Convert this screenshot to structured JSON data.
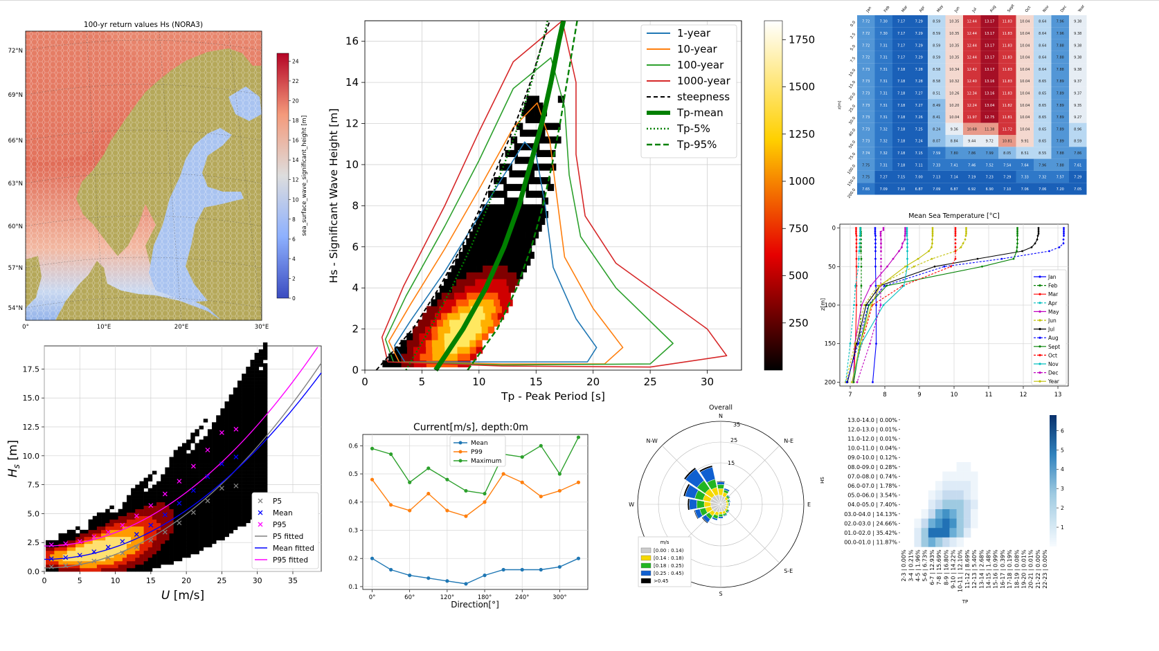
{
  "panels": {
    "map": {
      "title": "100-yr return values Hs (NORA3)",
      "lat_labels": [
        "72°N",
        "69°N",
        "66°N",
        "63°N",
        "60°N",
        "57°N",
        "54°N"
      ],
      "lon_labels": [
        "0°",
        "10°E",
        "20°E",
        "30°E"
      ],
      "colorbar_label": "sea_surface_wave_significant_height [m]",
      "colorbar_ticks": [
        "0",
        "2",
        "4",
        "6",
        "8",
        "10",
        "12",
        "14",
        "16",
        "18",
        "20",
        "22",
        "24"
      ]
    },
    "hs_tp": {
      "xlabel": "Tp - Peak Period [s]",
      "ylabel": "Hs - Significant Wave Height [m]",
      "xticks": [
        "0",
        "5",
        "10",
        "15",
        "20",
        "25",
        "30"
      ],
      "yticks": [
        "0",
        "2",
        "4",
        "6",
        "8",
        "10",
        "12",
        "14",
        "16"
      ],
      "colorbar_ticks": [
        "250",
        "500",
        "750",
        "1000",
        "1250",
        "1500",
        "1750"
      ],
      "legend": [
        "1-year",
        "10-year",
        "100-year",
        "1000-year",
        "steepness",
        "Tp-mean",
        "Tp-5%",
        "Tp-95%"
      ]
    },
    "hs_u": {
      "xlabel": "U [m/s]",
      "ylabel": "Hs [m]",
      "xticks": [
        "0",
        "5",
        "10",
        "15",
        "20",
        "25",
        "30",
        "35"
      ],
      "yticks": [
        "0.0",
        "2.5",
        "5.0",
        "7.5",
        "10.0",
        "12.5",
        "15.0",
        "17.5"
      ],
      "legend": [
        "P5",
        "Mean",
        "P95",
        "P5 fitted",
        "Mean fitted",
        "P95 fitted"
      ]
    },
    "current": {
      "title": "Current[m/s], depth:0m",
      "xlabel": "Direction[°]",
      "xticks": [
        "0°",
        "60°",
        "120°",
        "180°",
        "240°",
        "300°"
      ],
      "yticks": [
        "0.1",
        "0.2",
        "0.3",
        "0.4",
        "0.5",
        "0.6"
      ],
      "legend": [
        "Mean",
        "P99",
        "Maximum"
      ]
    },
    "rose": {
      "title": "Overall",
      "directions": [
        "N",
        "N-E",
        "E",
        "S-E",
        "S",
        "W",
        "N-W"
      ],
      "rings": [
        "15",
        "25",
        "35"
      ],
      "legend_title": "m/s",
      "legend": [
        "[0.00 : 0.14)",
        "[0.14 : 0.18)",
        "[0.18 : 0.25)",
        "[0.25 : 0.45)",
        ">0.45"
      ]
    },
    "table": {
      "months": [
        "Jan",
        "Feb",
        "Mar",
        "Apr",
        "May",
        "Jun",
        "Jul",
        "Aug",
        "Sept",
        "Oct",
        "Nov",
        "Dec",
        "Year"
      ],
      "depths": [
        "0.0",
        "2.5",
        "5.0",
        "7.5",
        "10.0",
        "15.0",
        "20.0",
        "25.0",
        "30.0",
        "40.0",
        "50.0",
        "75.0",
        "100.0",
        "150.0",
        "200.0"
      ],
      "axis_label": "z[m]",
      "rows": [
        [
          "7.72",
          "7.30",
          "7.17",
          "7.29",
          "8.59",
          "10.35",
          "12.44",
          "13.17",
          "11.83",
          "10.04",
          "8.64",
          "7.96",
          "9.38"
        ],
        [
          "7.72",
          "7.30",
          "7.17",
          "7.29",
          "8.59",
          "10.35",
          "12.44",
          "13.17",
          "11.83",
          "10.04",
          "8.64",
          "7.96",
          "9.38"
        ],
        [
          "7.72",
          "7.31",
          "7.17",
          "7.29",
          "8.59",
          "10.35",
          "12.44",
          "13.17",
          "11.83",
          "10.04",
          "8.64",
          "7.88",
          "9.38"
        ],
        [
          "7.72",
          "7.31",
          "7.17",
          "7.29",
          "8.59",
          "10.35",
          "12.44",
          "13.17",
          "11.83",
          "10.04",
          "8.64",
          "7.88",
          "9.38"
        ],
        [
          "7.73",
          "7.31",
          "7.18",
          "7.28",
          "8.58",
          "10.34",
          "12.42",
          "13.17",
          "11.83",
          "10.04",
          "8.64",
          "7.88",
          "9.38"
        ],
        [
          "7.73",
          "7.31",
          "7.18",
          "7.28",
          "8.58",
          "10.32",
          "12.40",
          "13.16",
          "11.83",
          "10.04",
          "8.65",
          "7.89",
          "9.37"
        ],
        [
          "7.73",
          "7.31",
          "7.18",
          "7.27",
          "8.51",
          "10.26",
          "12.34",
          "13.16",
          "11.83",
          "10.04",
          "8.65",
          "7.89",
          "9.37"
        ],
        [
          "7.73",
          "7.31",
          "7.18",
          "7.27",
          "8.49",
          "10.20",
          "12.24",
          "13.04",
          "11.82",
          "10.04",
          "8.65",
          "7.89",
          "9.35"
        ],
        [
          "7.73",
          "7.31",
          "7.18",
          "7.26",
          "8.41",
          "10.04",
          "11.97",
          "12.75",
          "11.81",
          "10.04",
          "8.65",
          "7.89",
          "9.27"
        ],
        [
          "7.73",
          "7.32",
          "7.18",
          "7.25",
          "8.24",
          "9.36",
          "10.68",
          "11.38",
          "11.72",
          "10.04",
          "8.65",
          "7.89",
          "8.96"
        ],
        [
          "7.73",
          "7.32",
          "7.18",
          "7.24",
          "8.07",
          "8.84",
          "9.44",
          "9.72",
          "10.81",
          "9.91",
          "8.65",
          "7.89",
          "8.59"
        ],
        [
          "7.74",
          "7.32",
          "7.18",
          "7.15",
          "7.59",
          "7.80",
          "7.86",
          "7.99",
          "8.05",
          "8.51",
          "8.55",
          "7.88",
          "7.86"
        ],
        [
          "7.75",
          "7.31",
          "7.18",
          "7.11",
          "7.33",
          "7.41",
          "7.46",
          "7.52",
          "7.54",
          "7.64",
          "7.96",
          "7.88",
          "7.61"
        ],
        [
          "7.75",
          "7.27",
          "7.15",
          "7.00",
          "7.13",
          "7.14",
          "7.19",
          "7.23",
          "7.29",
          "7.33",
          "7.32",
          "7.57",
          "7.29"
        ],
        [
          "7.65",
          "7.09",
          "7.10",
          "6.87",
          "7.09",
          "6.87",
          "6.92",
          "6.90",
          "7.10",
          "7.06",
          "7.06",
          "7.20",
          "7.05"
        ]
      ]
    },
    "profile": {
      "title": "Mean Sea Temperature [°C]",
      "ylabel": "z[m]",
      "xticks": [
        "7",
        "8",
        "9",
        "10",
        "11",
        "12",
        "13"
      ],
      "yticks": [
        "0",
        "50",
        "100",
        "150",
        "200"
      ]
    },
    "joint": {
      "hs_labels": [
        "13.0-14.0 | 0.00%",
        "12.0-13.0 | 0.01%",
        "11.0-12.0 | 0.01%",
        "10.0-11.0 | 0.04%",
        "09.0-10.0 | 0.12%",
        "08.0-09.0 | 0.28%",
        "07.0-08.0 | 0.74%",
        "06.0-07.0 | 1.78%",
        "05.0-06.0 | 3.54%",
        "04.0-05.0 | 7.40%",
        "03.0-04.0 | 14.13%",
        "02.0-03.0 | 24.66%",
        "01.0-02.0 | 35.42%",
        "00.0-01.0 | 11.87%"
      ],
      "tp_labels": [
        "2-3 | 0.00%",
        "3-4 | 0.21%",
        "4-5 | 1.96%",
        "5-6 | 6.73%",
        "6-7 | 12.93%",
        "7-8 | 15.69%",
        "8-9 | 16.80%",
        "9-10 | 14.22%",
        "10-11 | 12.10%",
        "11-12 | 8.69%",
        "12-13 | 5.40%",
        "13-14 | 2.68%",
        "14-15 | 1.48%",
        "15-16 | 0.99%",
        "16-17 | 0.39%",
        "17-18 | 0.19%",
        "18-19 | 0.08%",
        "19-20 | 0.01%",
        "20-21 | 0.01%",
        "21-22 | 0.00%",
        "22-23 | 0.00%"
      ],
      "xlabel": "TP",
      "ylabel": "HS",
      "colorbar_ticks": [
        "1",
        "2",
        "3",
        "4",
        "5",
        "6"
      ]
    }
  },
  "chart_data": [
    {
      "type": "line",
      "title": "Current[m/s], depth:0m",
      "xlabel": "Direction[°]",
      "x": [
        0,
        30,
        60,
        90,
        120,
        150,
        180,
        210,
        240,
        270,
        300,
        330
      ],
      "xlim": [
        -15,
        345
      ],
      "ylim": [
        0.09,
        0.64
      ],
      "series": [
        {
          "name": "Mean",
          "color": "#1f77b4",
          "values": [
            0.2,
            0.16,
            0.14,
            0.13,
            0.12,
            0.11,
            0.14,
            0.16,
            0.16,
            0.16,
            0.17,
            0.2
          ]
        },
        {
          "name": "P99",
          "color": "#ff7f0e",
          "values": [
            0.48,
            0.39,
            0.37,
            0.43,
            0.37,
            0.35,
            0.4,
            0.5,
            0.47,
            0.42,
            0.44,
            0.47
          ]
        },
        {
          "name": "Maximum",
          "color": "#2ca02c",
          "values": [
            0.59,
            0.57,
            0.47,
            0.52,
            0.48,
            0.44,
            0.43,
            0.57,
            0.56,
            0.6,
            0.5,
            0.63
          ]
        }
      ]
    },
    {
      "type": "line",
      "title": "Mean Sea Temperature [°C]",
      "ylabel": "z[m]",
      "x_is": "temperature",
      "depths": [
        0,
        2.5,
        5,
        7.5,
        10,
        15,
        20,
        25,
        30,
        40,
        50,
        75,
        100,
        150,
        200
      ],
      "xlim": [
        6.7,
        13.3
      ],
      "ylim": [
        205,
        -5
      ],
      "series": [
        {
          "name": "Jan",
          "color": "#0000ff",
          "dash": false,
          "values": [
            7.72,
            7.72,
            7.72,
            7.72,
            7.73,
            7.73,
            7.73,
            7.73,
            7.73,
            7.73,
            7.73,
            7.74,
            7.75,
            7.75,
            7.65
          ]
        },
        {
          "name": "Feb",
          "color": "#008000",
          "dash": true,
          "values": [
            7.3,
            7.3,
            7.31,
            7.31,
            7.31,
            7.31,
            7.31,
            7.31,
            7.31,
            7.32,
            7.32,
            7.32,
            7.31,
            7.27,
            7.09
          ]
        },
        {
          "name": "Mar",
          "color": "#ff0000",
          "dash": false,
          "values": [
            7.17,
            7.17,
            7.17,
            7.17,
            7.18,
            7.18,
            7.18,
            7.18,
            7.18,
            7.18,
            7.18,
            7.18,
            7.18,
            7.15,
            7.1
          ]
        },
        {
          "name": "Apr",
          "color": "#00bfbf",
          "dash": true,
          "values": [
            7.29,
            7.29,
            7.29,
            7.29,
            7.28,
            7.28,
            7.27,
            7.27,
            7.26,
            7.25,
            7.24,
            7.15,
            7.11,
            7.0,
            6.87
          ]
        },
        {
          "name": "May",
          "color": "#bf00bf",
          "dash": false,
          "values": [
            8.59,
            8.59,
            8.59,
            8.59,
            8.58,
            8.58,
            8.51,
            8.49,
            8.41,
            8.24,
            8.07,
            7.59,
            7.33,
            7.13,
            7.09
          ]
        },
        {
          "name": "Jun",
          "color": "#bfbf00",
          "dash": true,
          "values": [
            10.35,
            10.35,
            10.35,
            10.35,
            10.34,
            10.32,
            10.26,
            10.2,
            10.04,
            9.36,
            8.84,
            7.8,
            7.41,
            7.14,
            6.87
          ]
        },
        {
          "name": "Jul",
          "color": "#000000",
          "dash": false,
          "values": [
            12.44,
            12.44,
            12.44,
            12.44,
            12.42,
            12.4,
            12.34,
            12.24,
            11.97,
            10.68,
            9.44,
            7.86,
            7.46,
            7.19,
            6.92
          ]
        },
        {
          "name": "Aug",
          "color": "#0000ff",
          "dash": true,
          "values": [
            13.17,
            13.17,
            13.17,
            13.17,
            13.17,
            13.16,
            13.16,
            13.04,
            12.75,
            11.38,
            9.72,
            7.99,
            7.52,
            7.23,
            6.9
          ]
        },
        {
          "name": "Sept",
          "color": "#008000",
          "dash": false,
          "values": [
            11.83,
            11.83,
            11.83,
            11.83,
            11.83,
            11.83,
            11.83,
            11.82,
            11.81,
            11.72,
            10.81,
            8.05,
            7.54,
            7.29,
            7.1
          ]
        },
        {
          "name": "Oct",
          "color": "#ff0000",
          "dash": true,
          "values": [
            10.04,
            10.04,
            10.04,
            10.04,
            10.04,
            10.04,
            10.04,
            10.04,
            10.04,
            10.04,
            9.91,
            8.51,
            7.64,
            7.33,
            7.06
          ]
        },
        {
          "name": "Nov",
          "color": "#00bfbf",
          "dash": false,
          "values": [
            8.64,
            8.64,
            8.64,
            8.64,
            8.64,
            8.65,
            8.65,
            8.65,
            8.65,
            8.65,
            8.65,
            8.55,
            7.96,
            7.32,
            7.06
          ]
        },
        {
          "name": "Dec",
          "color": "#bf00bf",
          "dash": true,
          "values": [
            7.96,
            7.96,
            7.88,
            7.88,
            7.88,
            7.89,
            7.89,
            7.89,
            7.89,
            7.89,
            7.89,
            7.88,
            7.88,
            7.57,
            7.2
          ]
        },
        {
          "name": "Year",
          "color": "#bfbf00",
          "dash": false,
          "values": [
            9.38,
            9.38,
            9.38,
            9.38,
            9.38,
            9.37,
            9.37,
            9.35,
            9.27,
            8.96,
            8.59,
            7.86,
            7.61,
            7.29,
            7.05
          ]
        }
      ]
    },
    {
      "type": "scatter",
      "title": "",
      "xlabel": "U [m/s]",
      "ylabel": "Hs [m]",
      "xlim": [
        0,
        39
      ],
      "ylim": [
        0,
        19.5
      ],
      "u": [
        1,
        3,
        5,
        7,
        9,
        11,
        13,
        15,
        17,
        19,
        21,
        23,
        25,
        27
      ],
      "series": [
        {
          "name": "P5",
          "color": "#808080",
          "values": [
            0.4,
            0.5,
            0.7,
            0.9,
            1.2,
            1.6,
            2.1,
            2.7,
            3.4,
            4.2,
            5.1,
            6.1,
            7.2,
            7.4
          ]
        },
        {
          "name": "Mean",
          "color": "#0000ff",
          "values": [
            1.1,
            1.2,
            1.4,
            1.7,
            2.1,
            2.6,
            3.2,
            4.0,
            4.9,
            5.9,
            7.0,
            8.2,
            9.3,
            9.9
          ]
        },
        {
          "name": "P95",
          "color": "#ff00ff",
          "values": [
            2.3,
            2.4,
            2.6,
            3.0,
            3.4,
            4.0,
            4.8,
            5.7,
            6.7,
            7.8,
            9.1,
            10.5,
            12.0,
            12.3
          ]
        }
      ],
      "fits": [
        {
          "name": "P5 fitted",
          "color": "#808080",
          "a": 0.3,
          "b": 0.01165,
          "c": 2
        },
        {
          "name": "Mean fitted",
          "color": "#0000ff",
          "a": 1.05,
          "b": 0.0106,
          "c": 2
        },
        {
          "name": "P95 fitted",
          "color": "#ff00ff",
          "a": 2.2,
          "b": 0.0116,
          "c": 2
        }
      ]
    },
    {
      "type": "line",
      "title": "",
      "xlabel": "Tp - Peak Period [s]",
      "ylabel": "Hs - Significant Wave Height [m]",
      "xlim": [
        0,
        33
      ],
      "ylim": [
        0,
        17
      ],
      "tp_mean": {
        "name": "Tp-mean",
        "color": "#008000",
        "hs": [
          0,
          2,
          4,
          6,
          8,
          10,
          12,
          14,
          16,
          17
        ],
        "tp": [
          6.2,
          8.6,
          10.6,
          12.2,
          13.5,
          14.5,
          15.5,
          16.3,
          17.0,
          17.4
        ]
      },
      "tp_5": {
        "name": "Tp-5%",
        "color": "#008000",
        "hs": [
          0,
          2,
          4,
          6,
          8,
          10,
          12,
          14,
          16,
          17
        ],
        "tp": [
          3.6,
          5.7,
          7.6,
          9.3,
          10.8,
          12.2,
          13.5,
          14.6,
          15.6,
          16.0
        ]
      },
      "tp_95": {
        "name": "Tp-95%",
        "color": "#008000",
        "hs": [
          0,
          2,
          4,
          6,
          8,
          10,
          12,
          14,
          16,
          17
        ],
        "tp": [
          9.0,
          11.6,
          13.3,
          14.6,
          15.6,
          16.4,
          17.1,
          17.7,
          18.3,
          18.6
        ]
      },
      "steepness": {
        "name": "steepness",
        "color": "#000000",
        "hs": [
          0,
          2,
          4,
          6,
          8,
          10,
          12,
          14,
          16,
          17
        ],
        "tp": [
          1.0,
          4.2,
          6.5,
          8.5,
          10.2,
          11.7,
          13.2,
          14.5,
          15.6,
          16.2
        ]
      }
    }
  ]
}
